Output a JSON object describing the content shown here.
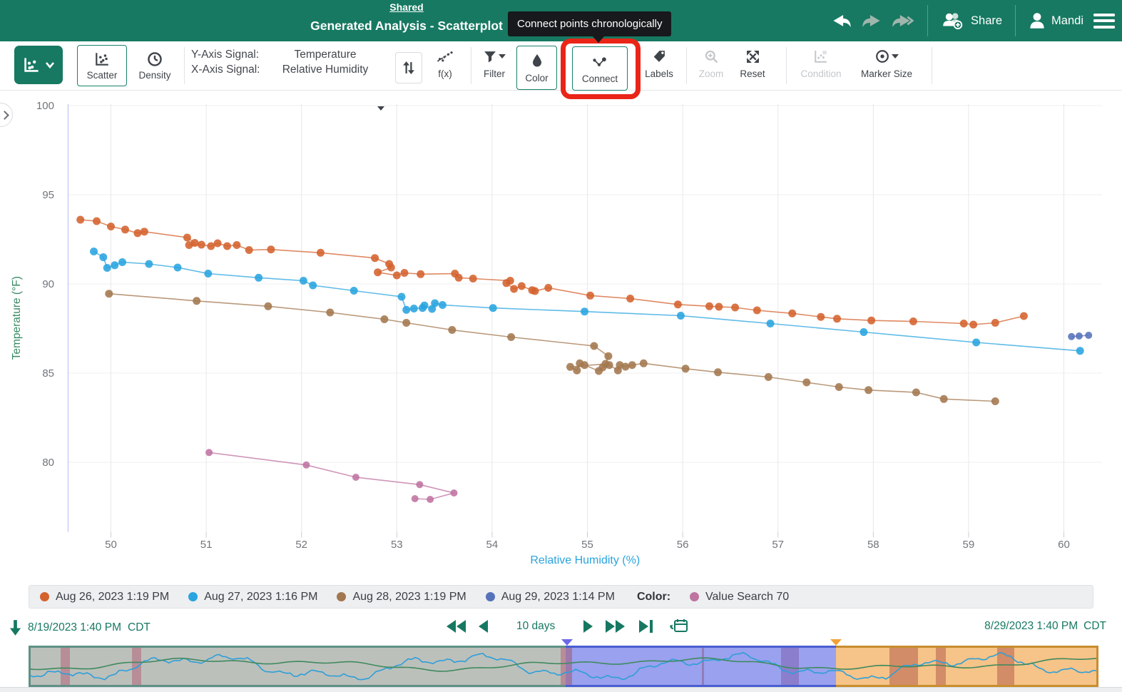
{
  "header": {
    "shared_label": "Shared",
    "title": "Generated Analysis - Scatterplot",
    "tooltip": "Connect points chronologically",
    "share_label": "Share",
    "user_name": "Mandi"
  },
  "toolbar": {
    "scatter_label": "Scatter",
    "density_label": "Density",
    "y_axis_label": "Y-Axis Signal:",
    "x_axis_label": "X-Axis Signal:",
    "y_axis_value": "Temperature",
    "x_axis_value": "Relative Humidity",
    "fx_label": "f(x)",
    "filter_label": "Filter",
    "color_label": "Color",
    "connect_label": "Connect",
    "labels_label": "Labels",
    "zoom_label": "Zoom",
    "reset_label": "Reset",
    "condition_label": "Condition",
    "marker_size_label": "Marker Size"
  },
  "chart_data": {
    "type": "scatter",
    "xlabel": "Relative Humidity (%)",
    "ylabel": "Temperature (°F)",
    "xlabel_color": "#29a4df",
    "ylabel_color": "#378a63",
    "xlim": [
      49.55,
      60.45
    ],
    "ylim": [
      77.2,
      100
    ],
    "xticks": [
      50,
      51,
      52,
      53,
      54,
      55,
      56,
      57,
      58,
      59,
      60
    ],
    "yticks": [
      80,
      85,
      90,
      95,
      100
    ],
    "grid": true,
    "legend_position": "bottom",
    "series": [
      {
        "name": "Aug 26, 2023 1:19 PM",
        "color": "#d4622d",
        "marker_radius": 5.5,
        "points": [
          [
            49.68,
            93.6
          ],
          [
            49.85,
            93.52
          ],
          [
            50.0,
            93.22
          ],
          [
            50.15,
            93.05
          ],
          [
            50.28,
            92.85
          ],
          [
            50.35,
            92.93
          ],
          [
            50.8,
            92.6
          ],
          [
            50.88,
            92.3
          ],
          [
            50.82,
            92.18
          ],
          [
            50.95,
            92.2
          ],
          [
            51.05,
            92.12
          ],
          [
            51.12,
            92.28
          ],
          [
            51.22,
            92.12
          ],
          [
            51.32,
            92.18
          ],
          [
            51.45,
            91.9
          ],
          [
            51.68,
            91.93
          ],
          [
            52.2,
            91.75
          ],
          [
            52.77,
            91.45
          ],
          [
            52.92,
            91.12
          ],
          [
            52.94,
            90.92
          ],
          [
            52.8,
            90.65
          ],
          [
            53.0,
            90.48
          ],
          [
            53.08,
            90.62
          ],
          [
            53.25,
            90.55
          ],
          [
            53.61,
            90.58
          ],
          [
            53.65,
            90.35
          ],
          [
            53.8,
            90.3
          ],
          [
            54.19,
            90.18
          ],
          [
            54.15,
            90.05
          ],
          [
            54.23,
            89.72
          ],
          [
            54.31,
            89.88
          ],
          [
            54.42,
            89.65
          ],
          [
            54.45,
            89.6
          ],
          [
            54.59,
            89.78
          ],
          [
            55.03,
            89.35
          ],
          [
            55.45,
            89.18
          ],
          [
            55.95,
            88.85
          ],
          [
            56.28,
            88.75
          ],
          [
            56.38,
            88.72
          ],
          [
            56.55,
            88.68
          ],
          [
            56.78,
            88.52
          ],
          [
            57.15,
            88.35
          ],
          [
            57.45,
            88.15
          ],
          [
            57.62,
            88.05
          ],
          [
            57.98,
            87.95
          ],
          [
            58.42,
            87.9
          ],
          [
            58.95,
            87.78
          ],
          [
            59.05,
            87.72
          ],
          [
            59.28,
            87.82
          ],
          [
            59.58,
            88.2
          ]
        ]
      },
      {
        "name": "Aug 27, 2023 1:16 PM",
        "color": "#29a4df",
        "marker_radius": 5.5,
        "points": [
          [
            49.82,
            91.82
          ],
          [
            49.92,
            91.5
          ],
          [
            49.96,
            90.9
          ],
          [
            50.04,
            91.05
          ],
          [
            50.12,
            91.22
          ],
          [
            50.4,
            91.12
          ],
          [
            50.7,
            90.92
          ],
          [
            51.02,
            90.58
          ],
          [
            51.55,
            90.35
          ],
          [
            52.02,
            90.18
          ],
          [
            52.12,
            89.92
          ],
          [
            52.55,
            89.62
          ],
          [
            53.05,
            89.28
          ],
          [
            53.1,
            88.55
          ],
          [
            53.18,
            88.62
          ],
          [
            53.27,
            88.65
          ],
          [
            53.29,
            88.79
          ],
          [
            53.37,
            88.6
          ],
          [
            53.4,
            88.92
          ],
          [
            53.48,
            88.82
          ],
          [
            54.01,
            88.65
          ],
          [
            54.97,
            88.45
          ],
          [
            55.98,
            88.22
          ],
          [
            56.92,
            87.78
          ],
          [
            57.9,
            87.3
          ],
          [
            59.08,
            86.72
          ],
          [
            60.17,
            86.25
          ]
        ]
      },
      {
        "name": "Aug 28, 2023 1:19 PM",
        "color": "#a3774f",
        "marker_radius": 5.5,
        "points": [
          [
            49.98,
            89.45
          ],
          [
            50.9,
            89.05
          ],
          [
            51.65,
            88.75
          ],
          [
            52.3,
            88.4
          ],
          [
            52.87,
            88.02
          ],
          [
            53.1,
            87.82
          ],
          [
            53.58,
            87.42
          ],
          [
            54.2,
            87.02
          ],
          [
            55.07,
            86.52
          ],
          [
            55.22,
            85.95
          ],
          [
            55.19,
            85.52
          ],
          [
            54.82,
            85.35
          ],
          [
            54.89,
            85.15
          ],
          [
            54.92,
            85.55
          ],
          [
            54.97,
            85.45
          ],
          [
            55.12,
            85.12
          ],
          [
            55.16,
            85.32
          ],
          [
            55.23,
            85.45
          ],
          [
            55.32,
            85.15
          ],
          [
            55.34,
            85.45
          ],
          [
            55.4,
            85.36
          ],
          [
            55.47,
            85.45
          ],
          [
            55.59,
            85.55
          ],
          [
            56.03,
            85.25
          ],
          [
            56.37,
            85.05
          ],
          [
            56.9,
            84.78
          ],
          [
            57.3,
            84.48
          ],
          [
            57.64,
            84.22
          ],
          [
            57.95,
            84.05
          ],
          [
            58.45,
            83.92
          ],
          [
            58.74,
            83.55
          ],
          [
            59.28,
            83.42
          ]
        ]
      },
      {
        "name": "Aug 29, 2023 1:14 PM",
        "color": "#5572bb",
        "marker_radius": 5,
        "points": [
          [
            60.08,
            87.05
          ],
          [
            60.16,
            87.08
          ],
          [
            60.26,
            87.12
          ]
        ]
      },
      {
        "name": "Value Search 70",
        "color": "#bf73a0",
        "marker_radius": 5,
        "points": [
          [
            53.19,
            77.96
          ],
          [
            53.35,
            77.92
          ],
          [
            53.6,
            78.28
          ],
          [
            53.24,
            78.75
          ],
          [
            52.57,
            79.16
          ],
          [
            52.05,
            79.85
          ],
          [
            51.03,
            80.55
          ]
        ]
      }
    ]
  },
  "legend": {
    "items": [
      {
        "label": "Aug 26, 2023 1:19 PM",
        "color": "#d4622d"
      },
      {
        "label": "Aug 27, 2023 1:16 PM",
        "color": "#29a4df"
      },
      {
        "label": "Aug 28, 2023 1:19 PM",
        "color": "#a3774f"
      },
      {
        "label": "Aug 29, 2023 1:14 PM",
        "color": "#5572bb"
      }
    ],
    "color_label": "Color:",
    "color_item": {
      "label": "Value Search 70",
      "color": "#bf73a0"
    }
  },
  "timebar": {
    "start": "8/19/2023 1:40 PM",
    "start_tz": "CDT",
    "duration": "10 days",
    "end": "8/29/2023 1:40 PM",
    "end_tz": "CDT"
  },
  "timeline": {
    "regions": [
      {
        "name": "outside-range",
        "fill": "#bcc0bb",
        "border": "#5f9086",
        "start": 0.0,
        "end": 0.502
      },
      {
        "name": "display-range-blue",
        "fill": "#9aa1ee",
        "border": "#4a5ed2",
        "start": 0.502,
        "end": 0.7547
      },
      {
        "name": "display-range-orange",
        "fill": "#f6c388",
        "border": "#c88d2f",
        "start": 0.7547,
        "end": 1.0
      }
    ],
    "bands": [
      {
        "start": 0.03,
        "end": 0.0387,
        "color": "#b46b80",
        "opacity": 0.6
      },
      {
        "start": 0.0967,
        "end": 0.1053,
        "color": "#b46b80",
        "opacity": 0.6
      },
      {
        "start": 0.4973,
        "end": 0.502,
        "color": "#b46b80",
        "opacity": 0.6
      },
      {
        "start": 0.502,
        "end": 0.508,
        "color": "#a05a74",
        "opacity": 0.55
      },
      {
        "start": 0.629,
        "end": 0.6315,
        "color": "#8a5a84",
        "opacity": 0.5
      },
      {
        "start": 0.7033,
        "end": 0.72,
        "color": "#7f62b0",
        "opacity": 0.55
      },
      {
        "start": 0.8047,
        "end": 0.8313,
        "color": "#bc6a52",
        "opacity": 0.62
      },
      {
        "start": 0.848,
        "end": 0.8573,
        "color": "#bc6a52",
        "opacity": 0.62
      },
      {
        "start": 0.9053,
        "end": 0.9213,
        "color": "#bc6a52",
        "opacity": 0.62
      }
    ],
    "markers": [
      {
        "pos": 0.503,
        "color": "#6e68e6"
      },
      {
        "pos": 0.7547,
        "color": "#f1a236"
      }
    ],
    "signals": [
      {
        "name": "humidity-preview",
        "color": "#2d9fd8"
      },
      {
        "name": "temperature-preview",
        "color": "#3f8a5e"
      }
    ]
  }
}
